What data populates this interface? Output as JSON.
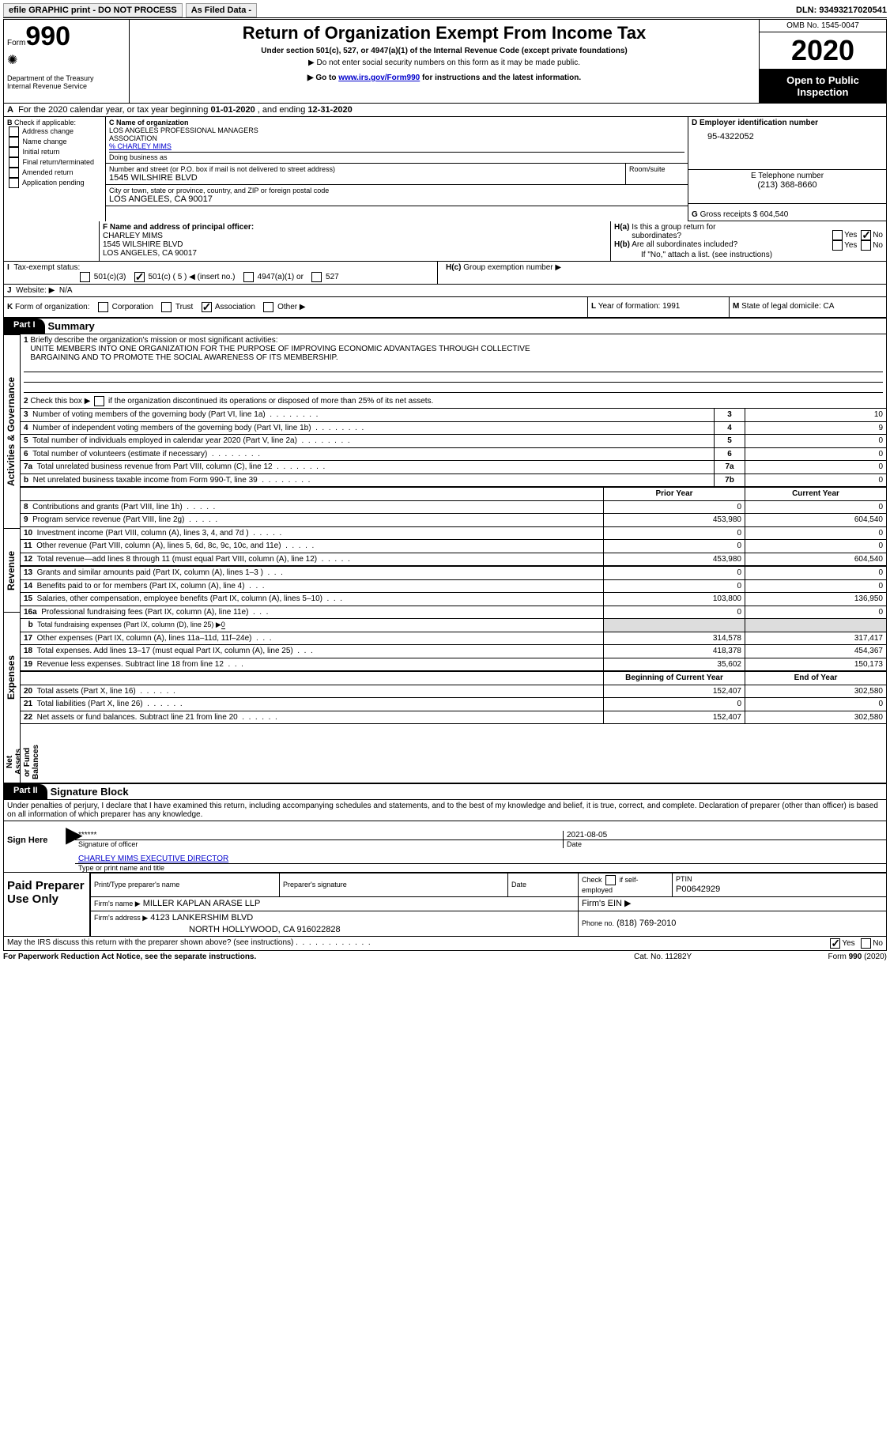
{
  "topbar": {
    "efile": "efile GRAPHIC print - DO NOT PROCESS",
    "asFiled": "As Filed Data -",
    "dln_label": "DLN:",
    "dln": "93493217020541"
  },
  "header": {
    "form_label": "Form",
    "form_no": "990",
    "dept": "Department of the Treasury",
    "irs": "Internal Revenue Service",
    "title": "Return of Organization Exempt From Income Tax",
    "sub1": "Under section 501(c), 527, or 4947(a)(1) of the Internal Revenue Code (except private foundations)",
    "sub2": "▶ Do not enter social security numbers on this form as it may be made public.",
    "sub3_pre": "▶ Go to",
    "sub3_link": "www.irs.gov/Form990",
    "sub3_post": "for instructions and the latest information.",
    "omb": "OMB No. 1545-0047",
    "year": "2020",
    "open": "Open to Public Inspection"
  },
  "A": {
    "text_pre": "For the 2020 calendar year, or tax year beginning",
    "begin": "01-01-2020",
    "mid": ", and ending",
    "end": "12-31-2020"
  },
  "B": {
    "label": "Check if applicable:",
    "items": [
      "Address change",
      "Name change",
      "Initial return",
      "Final return/terminated",
      "Amended return",
      "Application pending"
    ]
  },
  "C": {
    "label": "C Name of organization",
    "name1": "LOS ANGELES PROFESSIONAL MANAGERS",
    "name2": "ASSOCIATION",
    "care": "% CHARLEY MIMS",
    "dba_label": "Doing business as",
    "addr_label": "Number and street (or P.O. box if mail is not delivered to street address)",
    "addr": "1545 WILSHIRE BLVD",
    "room_label": "Room/suite",
    "city_label": "City or town, state or province, country, and ZIP or foreign postal code",
    "city": "LOS ANGELES, CA  90017"
  },
  "D": {
    "label": "D Employer identification number",
    "value": "95-4322052"
  },
  "E": {
    "label": "E Telephone number",
    "value": "(213) 368-8660"
  },
  "G": {
    "label": "G",
    "text": "Gross receipts $",
    "value": "604,540"
  },
  "F": {
    "label": "F  Name and address of principal officer:",
    "l1": "CHARLEY MIMS",
    "l2": "1545 WILSHIRE BLVD",
    "l3": "LOS ANGELES, CA  90017"
  },
  "H": {
    "a_label": "H(a)",
    "a_text": "Is this a group return for",
    "a_text2": "subordinates?",
    "yes": "Yes",
    "no": "No",
    "b_label": "H(b)",
    "b_text": "Are all subordinates included?",
    "b_note": "If \"No,\" attach a list. (see instructions)",
    "c_label": "H(c)",
    "c_text": "Group exemption number ▶"
  },
  "I": {
    "label": "I",
    "text": "Tax-exempt status:",
    "o1": "501(c)(3)",
    "o2": "501(c) ( 5 ) ◀ (insert no.)",
    "o3": "4947(a)(1) or",
    "o4": "527"
  },
  "J": {
    "label": "J",
    "text": "Website: ▶",
    "value": "N/A"
  },
  "K": {
    "label": "K",
    "text": "Form of organization:",
    "opts": [
      "Corporation",
      "Trust",
      "Association",
      "Other ▶"
    ]
  },
  "L": {
    "label": "L",
    "text": "Year of formation:",
    "value": "1991"
  },
  "M": {
    "label": "M",
    "text": "State of legal domicile:",
    "value": "CA"
  },
  "partI": {
    "label": "Part I",
    "title": "Summary"
  },
  "line1": {
    "n": "1",
    "text": "Briefly describe the organization's mission or most significant activities:",
    "v1": "UNITE MEMBERS INTO ONE ORGANIZATION FOR THE PURPOSE OF IMPROVING ECONOMIC ADVANTAGES THROUGH COLLECTIVE",
    "v2": "BARGAINING AND TO PROMOTE THE SOCIAL AWARENESS OF ITS MEMBERSHIP."
  },
  "line2": {
    "n": "2",
    "text": "Check this box ▶",
    "post": "if the organization discontinued its operations or disposed of more than 25% of its net assets."
  },
  "governance_rows": [
    {
      "n": "3",
      "text": "Number of voting members of the governing body (Part VI, line 1a)",
      "box": "3",
      "v": "10"
    },
    {
      "n": "4",
      "text": "Number of independent voting members of the governing body (Part VI, line 1b)",
      "box": "4",
      "v": "9"
    },
    {
      "n": "5",
      "text": "Total number of individuals employed in calendar year 2020 (Part V, line 2a)",
      "box": "5",
      "v": "0"
    },
    {
      "n": "6",
      "text": "Total number of volunteers (estimate if necessary)",
      "box": "6",
      "v": "0"
    },
    {
      "n": "7a",
      "text": "Total unrelated business revenue from Part VIII, column (C), line 12",
      "box": "7a",
      "v": "0"
    },
    {
      "n": "b",
      "text": "Net unrelated business taxable income from Form 990-T, line 39",
      "box": "7b",
      "v": "0"
    }
  ],
  "cols": {
    "prior": "Prior Year",
    "current": "Current Year",
    "begin": "Beginning of Current Year",
    "end": "End of Year"
  },
  "sections": {
    "ag": "Activities & Governance",
    "rev": "Revenue",
    "exp": "Expenses",
    "net": "Net Assets or Fund Balances"
  },
  "revenue_rows": [
    {
      "n": "8",
      "text": "Contributions and grants (Part VIII, line 1h)",
      "p": "0",
      "c": "0"
    },
    {
      "n": "9",
      "text": "Program service revenue (Part VIII, line 2g)",
      "p": "453,980",
      "c": "604,540"
    },
    {
      "n": "10",
      "text": "Investment income (Part VIII, column (A), lines 3, 4, and 7d )",
      "p": "0",
      "c": "0"
    },
    {
      "n": "11",
      "text": "Other revenue (Part VIII, column (A), lines 5, 6d, 8c, 9c, 10c, and 11e)",
      "p": "0",
      "c": "0"
    },
    {
      "n": "12",
      "text": "Total revenue—add lines 8 through 11 (must equal Part VIII, column (A), line 12)",
      "p": "453,980",
      "c": "604,540"
    }
  ],
  "expense_rows": [
    {
      "n": "13",
      "text": "Grants and similar amounts paid (Part IX, column (A), lines 1–3 )",
      "p": "0",
      "c": "0"
    },
    {
      "n": "14",
      "text": "Benefits paid to or for members (Part IX, column (A), line 4)",
      "p": "0",
      "c": "0"
    },
    {
      "n": "15",
      "text": "Salaries, other compensation, employee benefits (Part IX, column (A), lines 5–10)",
      "p": "103,800",
      "c": "136,950"
    },
    {
      "n": "16a",
      "text": "Professional fundraising fees (Part IX, column (A), line 11e)",
      "p": "0",
      "c": "0"
    },
    {
      "n": "b",
      "text": "Total fundraising expenses (Part IX, column (D), line 25) ▶",
      "val": "0",
      "p": "",
      "c": "",
      "gray": true,
      "small": true
    },
    {
      "n": "17",
      "text": "Other expenses (Part IX, column (A), lines 11a–11d, 11f–24e)",
      "p": "314,578",
      "c": "317,417"
    },
    {
      "n": "18",
      "text": "Total expenses. Add lines 13–17 (must equal Part IX, column (A), line 25)",
      "p": "418,378",
      "c": "454,367"
    },
    {
      "n": "19",
      "text": "Revenue less expenses. Subtract line 18 from line 12",
      "p": "35,602",
      "c": "150,173"
    }
  ],
  "net_rows": [
    {
      "n": "20",
      "text": "Total assets (Part X, line 16)",
      "p": "152,407",
      "c": "302,580"
    },
    {
      "n": "21",
      "text": "Total liabilities (Part X, line 26)",
      "p": "0",
      "c": "0"
    },
    {
      "n": "22",
      "text": "Net assets or fund balances. Subtract line 21 from line 20",
      "p": "152,407",
      "c": "302,580"
    }
  ],
  "partII": {
    "label": "Part II",
    "title": "Signature Block"
  },
  "perjury": "Under penalties of perjury, I declare that I have examined this return, including accompanying schedules and statements, and to the best of my knowledge and belief, it is true, correct, and complete. Declaration of preparer (other than officer) is based on all information of which preparer has any knowledge.",
  "sign": {
    "here": "Sign Here",
    "stars": "******",
    "sig_label": "Signature of officer",
    "date": "2021-08-05",
    "date_label": "Date",
    "name": "CHARLEY MIMS  EXECUTIVE DIRECTOR",
    "name_label": "Type or print name and title"
  },
  "paid": {
    "label": "Paid Preparer Use Only",
    "h1": "Print/Type preparer's name",
    "h2": "Preparer's signature",
    "h3": "Date",
    "h4_pre": "Check",
    "h4_post": "if self-employed",
    "ptin_label": "PTIN",
    "ptin": "P00642929",
    "firm_name_label": "Firm's name    ▶",
    "firm_name": "MILLER KAPLAN ARASE LLP",
    "ein_label": "Firm's EIN ▶",
    "addr_label": "Firm's address ▶",
    "addr1": "4123 LANKERSHIM BLVD",
    "addr2": "NORTH HOLLYWOOD, CA  916022828",
    "phone_label": "Phone no.",
    "phone": "(818) 769-2010"
  },
  "footer": {
    "discuss": "May the IRS discuss this return with the preparer shown above? (see instructions)",
    "yes": "Yes",
    "no": "No",
    "paperwork": "For Paperwork Reduction Act Notice, see the separate instructions.",
    "cat": "Cat. No. 11282Y",
    "form": "Form 990 (2020)"
  }
}
